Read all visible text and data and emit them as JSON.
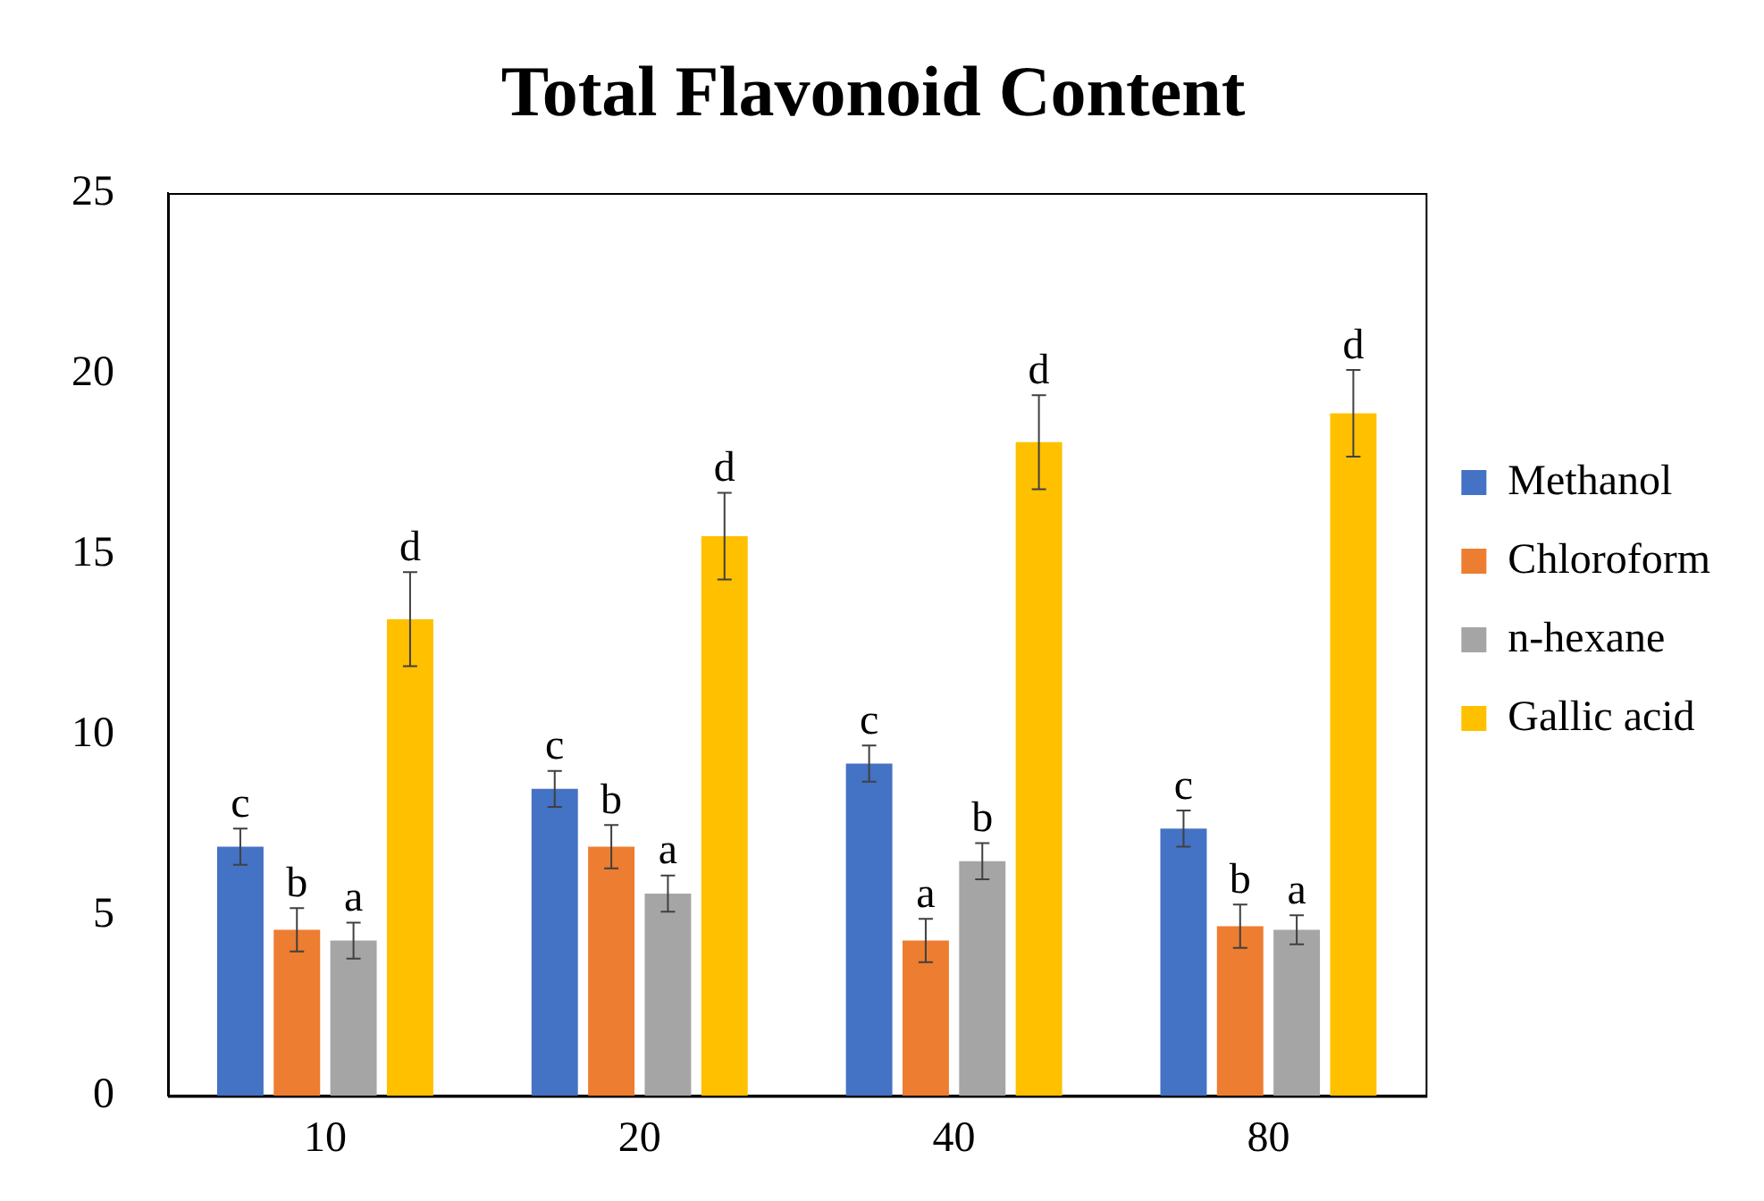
{
  "chart_data": {
    "type": "bar",
    "title": "Total Flavonoid Content",
    "categories": [
      "10",
      "20",
      "40",
      "80"
    ],
    "series": [
      {
        "name": "Methanol",
        "color": "#4472c4",
        "values": [
          6.9,
          8.5,
          9.2,
          7.4
        ],
        "errors": [
          0.5,
          0.5,
          0.5,
          0.5
        ],
        "value_labels": [
          "c",
          "c",
          "c",
          "c"
        ]
      },
      {
        "name": "Chloroform",
        "color": "#ed7d31",
        "values": [
          4.6,
          6.9,
          4.3,
          4.7
        ],
        "errors": [
          0.6,
          0.6,
          0.6,
          0.6
        ],
        "value_labels": [
          "b",
          "b",
          "a",
          "b"
        ]
      },
      {
        "name": "n-hexane",
        "color": "#a5a5a5",
        "values": [
          4.3,
          5.6,
          6.5,
          4.6
        ],
        "errors": [
          0.5,
          0.5,
          0.5,
          0.4
        ],
        "value_labels": [
          "a",
          "a",
          "b",
          "a"
        ]
      },
      {
        "name": "Gallic acid",
        "color": "#ffc000",
        "values": [
          13.2,
          15.5,
          18.1,
          18.9
        ],
        "errors": [
          1.3,
          1.2,
          1.3,
          1.2
        ],
        "value_labels": [
          "d",
          "d",
          "d",
          "d"
        ]
      }
    ],
    "ylim": [
      0,
      25
    ],
    "yticks": [
      0,
      5,
      10,
      15,
      20,
      25
    ],
    "grid": false,
    "legend": "right"
  }
}
